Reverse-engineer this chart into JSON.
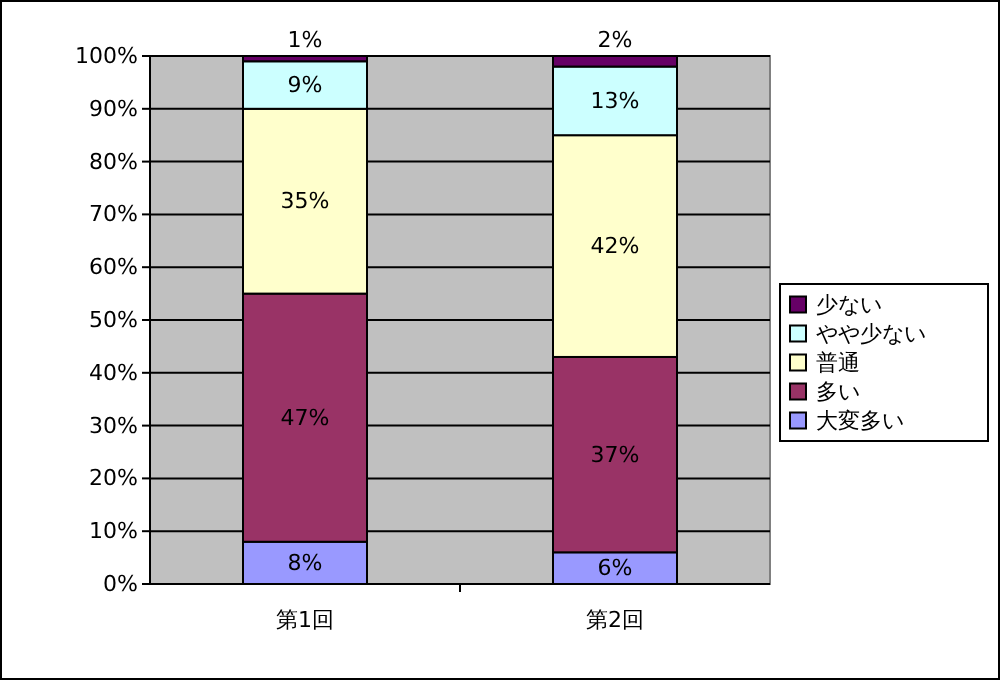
{
  "chart_data": {
    "type": "bar",
    "stacked": true,
    "categories": [
      "第1回",
      "第2回"
    ],
    "series": [
      {
        "name": "大変多い",
        "color": "#9999ff",
        "values": [
          8,
          6
        ],
        "value_labels": [
          "8%",
          "6%"
        ]
      },
      {
        "name": "多い",
        "color": "#993366",
        "values": [
          47,
          37
        ],
        "value_labels": [
          "47%",
          "37%"
        ]
      },
      {
        "name": "普通",
        "color": "#ffffcc",
        "values": [
          35,
          42
        ],
        "value_labels": [
          "35%",
          "42%"
        ]
      },
      {
        "name": "やや少ない",
        "color": "#ccffff",
        "values": [
          9,
          13
        ],
        "value_labels": [
          "9%",
          "13%"
        ]
      },
      {
        "name": "少ない",
        "color": "#660066",
        "values": [
          1,
          2
        ],
        "value_labels": [
          "1%",
          "2%"
        ]
      }
    ],
    "ylim": [
      0,
      100
    ],
    "yticks": [
      {
        "value": 0,
        "label": "0%"
      },
      {
        "value": 10,
        "label": "10%"
      },
      {
        "value": 20,
        "label": "20%"
      },
      {
        "value": 30,
        "label": "30%"
      },
      {
        "value": 40,
        "label": "40%"
      },
      {
        "value": 50,
        "label": "50%"
      },
      {
        "value": 60,
        "label": "60%"
      },
      {
        "value": 70,
        "label": "70%"
      },
      {
        "value": 80,
        "label": "80%"
      },
      {
        "value": 90,
        "label": "90%"
      },
      {
        "value": 100,
        "label": "100%"
      }
    ],
    "grid": "y",
    "legend": "right"
  }
}
